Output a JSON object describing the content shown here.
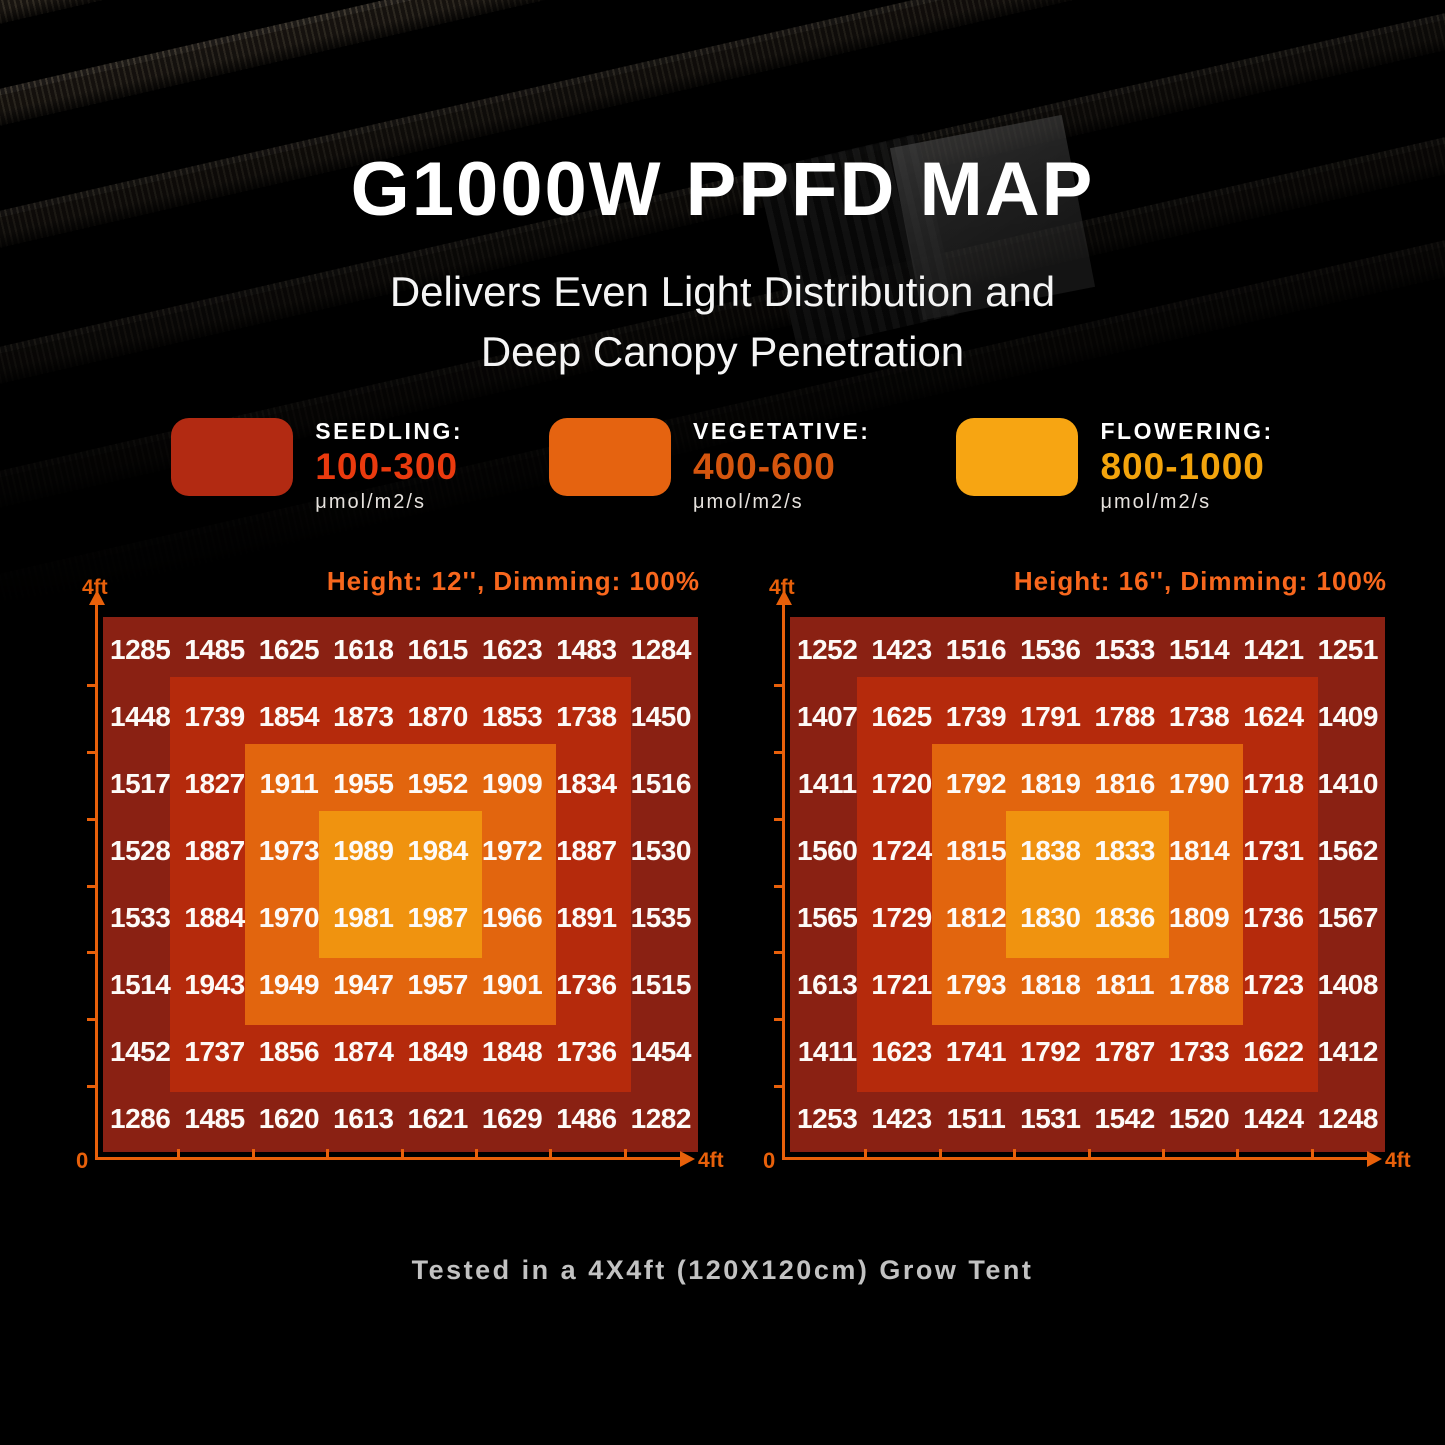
{
  "page": {
    "title": "G1000W PPFD MAP",
    "subtitle_line1": "Delivers Even Light Distribution and",
    "subtitle_line2": "Deep Canopy Penetration",
    "footnote": "Tested in a 4X4ft (120X120cm) Grow Tent"
  },
  "legend": {
    "items": [
      {
        "label": "SEEDLING:",
        "range": "100-300",
        "unit": "μmol/m2/s",
        "color": "#b22a12",
        "range_color": "#ea3a0e"
      },
      {
        "label": "VEGETATIVE:",
        "range": "400-600",
        "unit": "μmol/m2/s",
        "color": "#e56310",
        "range_color": "#d4550e"
      },
      {
        "label": "FLOWERING:",
        "range": "800-1000",
        "unit": "μmol/m2/s",
        "color": "#f7a512",
        "range_color": "#f3a40c"
      }
    ]
  },
  "chart_data": [
    {
      "type": "heatmap",
      "title": "Height: 12'', Dimming: 100%",
      "rows": 8,
      "cols": 8,
      "x_axis": {
        "start": "0",
        "end": "4ft"
      },
      "y_axis": {
        "end": "4ft"
      },
      "values": [
        [
          1285,
          1485,
          1625,
          1618,
          1615,
          1623,
          1483,
          1284
        ],
        [
          1448,
          1739,
          1854,
          1873,
          1870,
          1853,
          1738,
          1450
        ],
        [
          1517,
          1827,
          1911,
          1955,
          1952,
          1909,
          1834,
          1516
        ],
        [
          1528,
          1887,
          1973,
          1989,
          1984,
          1972,
          1887,
          1530
        ],
        [
          1533,
          1884,
          1970,
          1981,
          1987,
          1966,
          1891,
          1535
        ],
        [
          1514,
          1943,
          1949,
          1947,
          1957,
          1901,
          1736,
          1515
        ],
        [
          1452,
          1737,
          1856,
          1874,
          1849,
          1848,
          1736,
          1454
        ],
        [
          1286,
          1485,
          1620,
          1613,
          1621,
          1629,
          1486,
          1282
        ]
      ],
      "zone_colors": {
        "outer": "#8a2113",
        "ring": "#b52a0c",
        "inner": "#e2650e",
        "center": "#f0930f"
      }
    },
    {
      "type": "heatmap",
      "title": "Height: 16'', Dimming: 100%",
      "rows": 8,
      "cols": 8,
      "x_axis": {
        "start": "0",
        "end": "4ft"
      },
      "y_axis": {
        "end": "4ft"
      },
      "values": [
        [
          1252,
          1423,
          1516,
          1536,
          1533,
          1514,
          1421,
          1251
        ],
        [
          1407,
          1625,
          1739,
          1791,
          1788,
          1738,
          1624,
          1409
        ],
        [
          1411,
          1720,
          1792,
          1819,
          1816,
          1790,
          1718,
          1410
        ],
        [
          1560,
          1724,
          1815,
          1838,
          1833,
          1814,
          1731,
          1562
        ],
        [
          1565,
          1729,
          1812,
          1830,
          1836,
          1809,
          1736,
          1567
        ],
        [
          1613,
          1721,
          1793,
          1818,
          1811,
          1788,
          1723,
          1408
        ],
        [
          1411,
          1623,
          1741,
          1792,
          1787,
          1733,
          1622,
          1412
        ],
        [
          1253,
          1423,
          1511,
          1531,
          1542,
          1520,
          1424,
          1248
        ]
      ],
      "zone_colors": {
        "outer": "#8a2113",
        "ring": "#b52a0c",
        "inner": "#e2650e",
        "center": "#f0930f"
      }
    }
  ],
  "colors": {
    "chart_header": "#f8671d",
    "axis": "#e8600a",
    "background": "#000000",
    "cell_text": "#fdfaf7"
  }
}
